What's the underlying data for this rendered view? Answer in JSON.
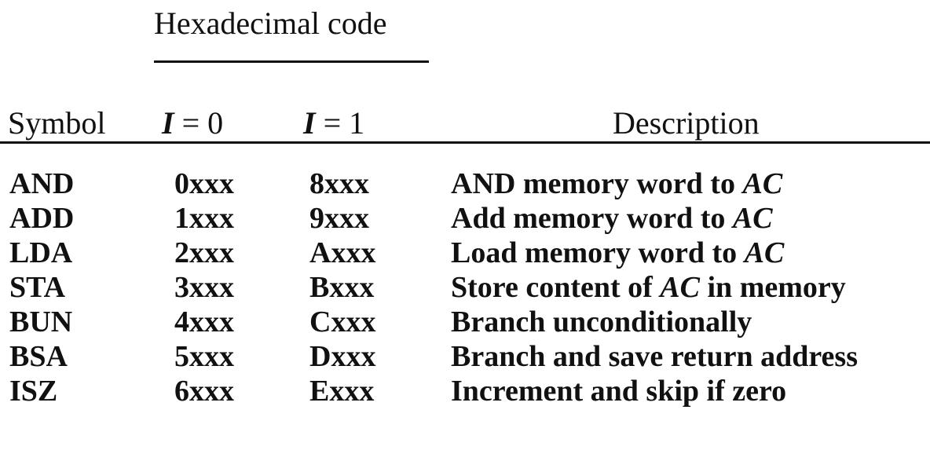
{
  "header": {
    "group_title": "Hexadecimal code",
    "symbol": "Symbol",
    "i0_var": "I",
    "i0_rest": " = 0",
    "i1_var": "I",
    "i1_rest": " = 1",
    "description": "Description"
  },
  "rows": [
    {
      "symbol": "AND",
      "i0": "0xxx",
      "i1": "8xxx",
      "desc_pre": "AND memory word to ",
      "desc_var": "AC",
      "desc_post": ""
    },
    {
      "symbol": "ADD",
      "i0": "1xxx",
      "i1": "9xxx",
      "desc_pre": "Add memory word to ",
      "desc_var": "AC",
      "desc_post": ""
    },
    {
      "symbol": "LDA",
      "i0": "2xxx",
      "i1": "Axxx",
      "desc_pre": "Load memory word to ",
      "desc_var": "AC",
      "desc_post": ""
    },
    {
      "symbol": "STA",
      "i0": "3xxx",
      "i1": "Bxxx",
      "desc_pre": "Store content of ",
      "desc_var": "AC",
      "desc_post": " in memory"
    },
    {
      "symbol": "BUN",
      "i0": "4xxx",
      "i1": "Cxxx",
      "desc_pre": "Branch unconditionally",
      "desc_var": "",
      "desc_post": ""
    },
    {
      "symbol": "BSA",
      "i0": "5xxx",
      "i1": "Dxxx",
      "desc_pre": "Branch and save return address",
      "desc_var": "",
      "desc_post": ""
    },
    {
      "symbol": "ISZ",
      "i0": "6xxx",
      "i1": "Exxx",
      "desc_pre": "Increment and skip if zero",
      "desc_var": "",
      "desc_post": ""
    }
  ]
}
